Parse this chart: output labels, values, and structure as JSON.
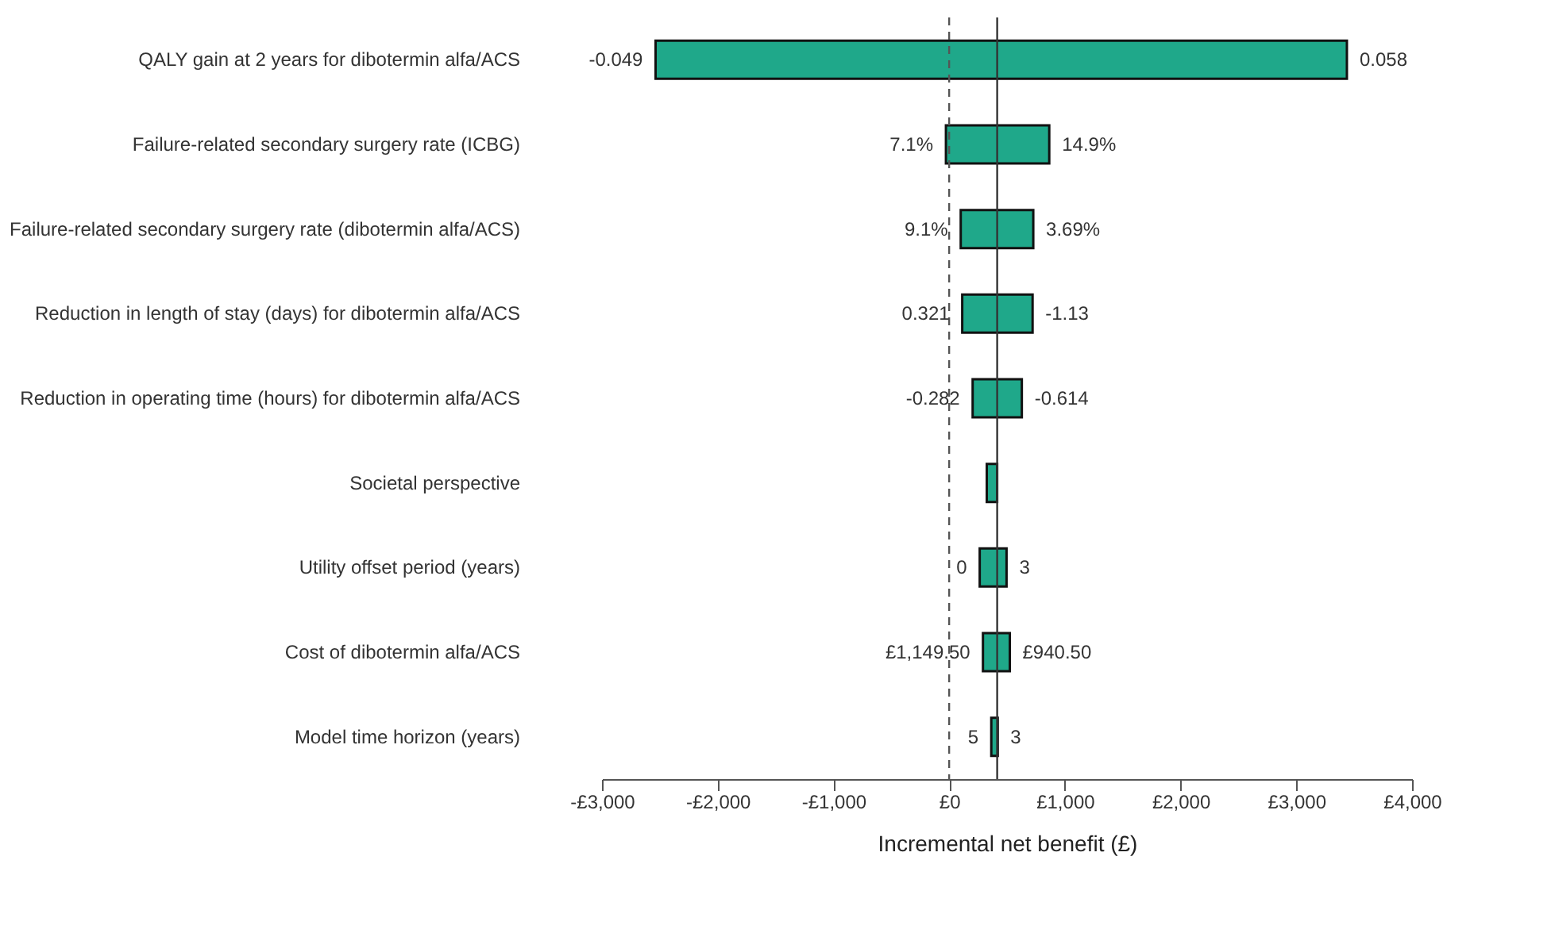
{
  "chart_data": {
    "type": "bar",
    "orientation": "horizontal",
    "xlabel": "Incremental net benefit (£)",
    "categories": [
      "QALY gain at 2 years for dibotermin alfa/ACS",
      "Failure-related secondary surgery rate (ICBG)",
      "Failure-related secondary surgery rate (dibotermin alfa/ACS)",
      "Reduction in length of stay (days) for dibotermin alfa/ACS",
      "Reduction in operating time (hours) for dibotermin alfa/ACS",
      "Societal perspective",
      "Utility offset period (years)",
      "Cost of dibotermin alfa/ACS",
      "Model time horizon (years)"
    ],
    "base": [
      -2537,
      -28,
      100,
      113,
      203,
      325,
      264,
      292,
      364
    ],
    "values": [
      5974,
      893,
      627,
      608,
      425,
      90,
      232,
      232,
      56
    ],
    "color": "#1fa88a",
    "xlim": [
      -3000,
      4000
    ],
    "xticks": [
      {
        "value": -3000,
        "label": "-£3,000"
      },
      {
        "value": -2000,
        "label": "-£2,000"
      },
      {
        "value": -1000,
        "label": "-£1,000"
      },
      {
        "value": 0,
        "label": "£0"
      },
      {
        "value": 1000,
        "label": "£1,000"
      },
      {
        "value": 2000,
        "label": "£2,000"
      },
      {
        "value": 3000,
        "label": "£3,000"
      },
      {
        "value": 4000,
        "label": "£4,000"
      }
    ],
    "grid": false,
    "ref_lines": [
      {
        "axis": "x",
        "value": 0,
        "line_style": "dashed",
        "color": "#555555"
      },
      {
        "axis": "x",
        "value": 415,
        "line_style": "solid",
        "color": "#333333"
      }
    ],
    "annotations": [
      {
        "text": "-0.049",
        "x": -2537,
        "y": "QALY gain at 2 years for dibotermin alfa/ACS"
      },
      {
        "text": "0.058",
        "x": 3437,
        "y": "QALY gain at 2 years for dibotermin alfa/ACS"
      },
      {
        "text": "7.1%",
        "x": -28,
        "y": "Failure-related secondary surgery rate (ICBG)"
      },
      {
        "text": "14.9%",
        "x": 865,
        "y": "Failure-related secondary surgery rate (ICBG)"
      },
      {
        "text": "9.1%",
        "x": 100,
        "y": "Failure-related secondary surgery rate (dibotermin alfa/ACS)"
      },
      {
        "text": "3.69%",
        "x": 727,
        "y": "Failure-related secondary surgery rate (dibotermin alfa/ACS)"
      },
      {
        "text": "0.321",
        "x": 113,
        "y": "Reduction in length of stay (days) for dibotermin alfa/ACS"
      },
      {
        "text": "-1.13",
        "x": 721,
        "y": "Reduction in length of stay (days) for dibotermin alfa/ACS"
      },
      {
        "text": "-0.282",
        "x": 203,
        "y": "Reduction in operating time (hours) for dibotermin alfa/ACS"
      },
      {
        "text": "-0.614",
        "x": 628,
        "y": "Reduction in operating time (hours) for dibotermin alfa/ACS"
      },
      {
        "text": "0",
        "x": 264,
        "y": "Utility offset period (years)"
      },
      {
        "text": "3",
        "x": 496,
        "y": "Utility offset period (years)"
      },
      {
        "text": "£1,149.50",
        "x": 292,
        "y": "Cost of dibotermin alfa/ACS"
      },
      {
        "text": "£940.50",
        "x": 524,
        "y": "Cost of dibotermin alfa/ACS"
      },
      {
        "text": "5",
        "x": 364,
        "y": "Model time horizon (years)"
      },
      {
        "text": "3",
        "x": 420,
        "y": "Model time horizon (years)"
      }
    ]
  }
}
